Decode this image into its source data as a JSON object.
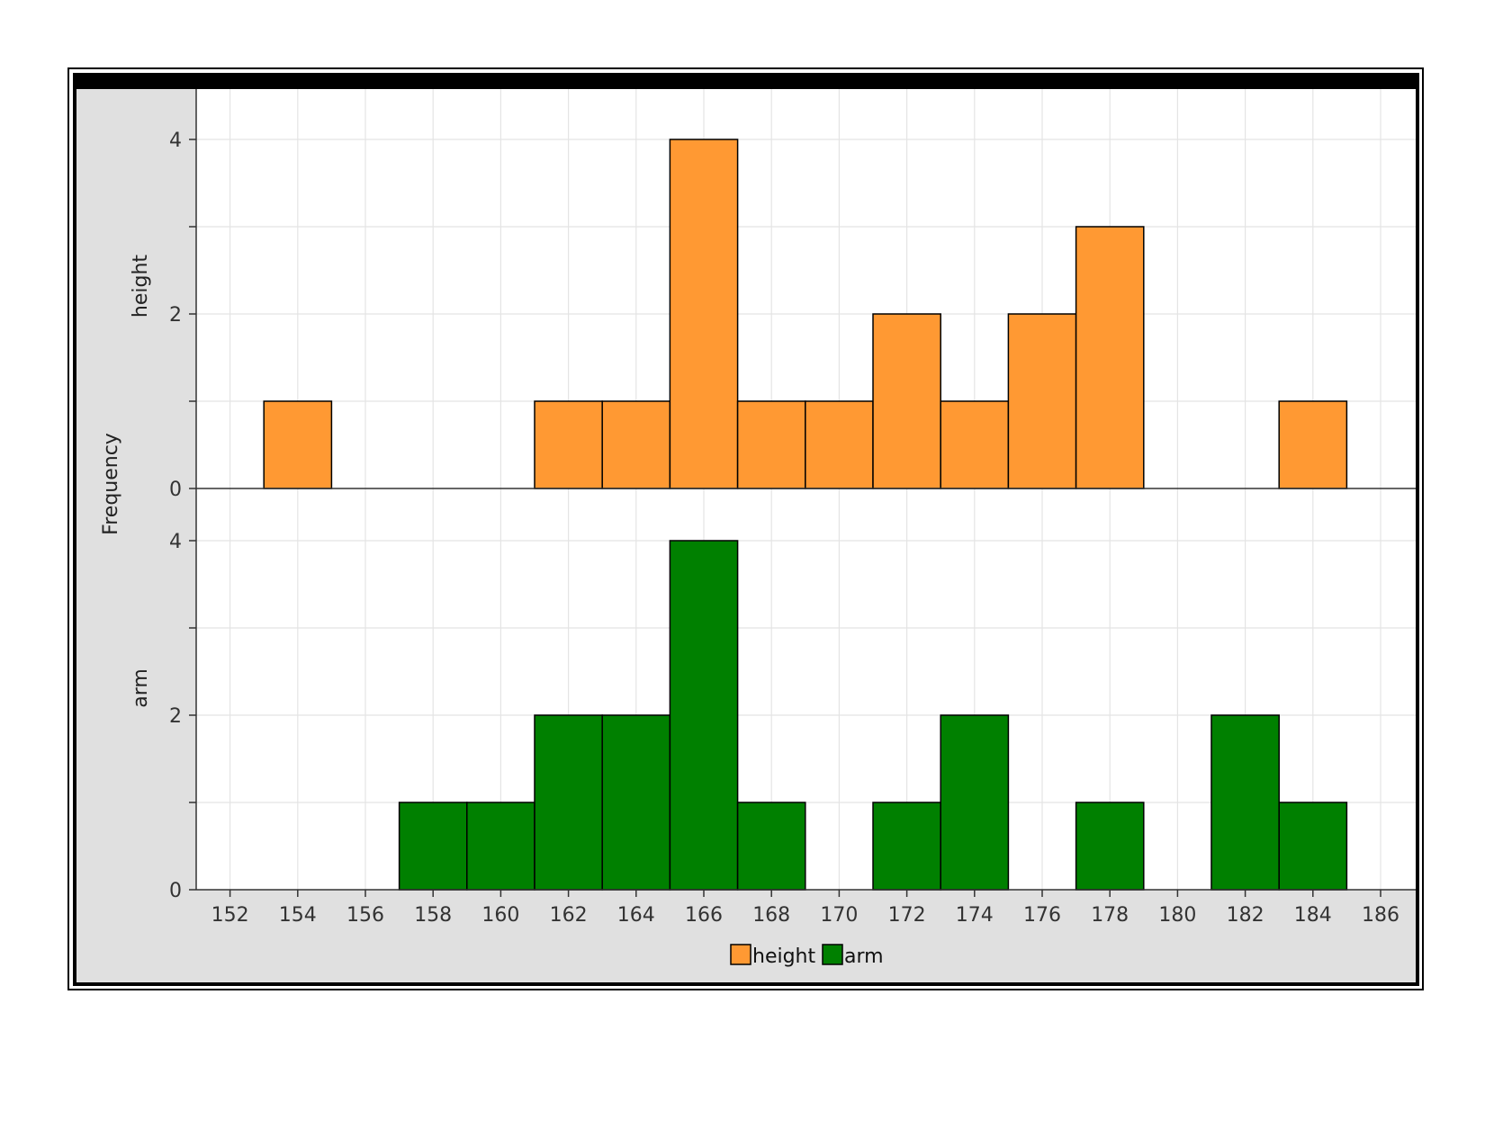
{
  "chart_data": {
    "type": "bar",
    "ylabel": "Frequency",
    "x_ticks": [
      152,
      154,
      156,
      158,
      160,
      162,
      164,
      166,
      168,
      170,
      172,
      174,
      176,
      178,
      180,
      182,
      184,
      186
    ],
    "xlim": [
      151,
      187
    ],
    "ylim": [
      0,
      4.6
    ],
    "y_ticks": [
      0,
      2,
      4
    ],
    "y_minor_ticks": [
      1,
      3
    ],
    "bin_width": 2,
    "grid": true,
    "legend_position": "bottom-center",
    "series": [
      {
        "name": "height",
        "color": "#FF9933",
        "panel_label": "height",
        "bins": [
          {
            "start": 153,
            "end": 155,
            "count": 1
          },
          {
            "start": 161,
            "end": 163,
            "count": 1
          },
          {
            "start": 163,
            "end": 165,
            "count": 1
          },
          {
            "start": 165,
            "end": 167,
            "count": 4
          },
          {
            "start": 167,
            "end": 169,
            "count": 1
          },
          {
            "start": 169,
            "end": 171,
            "count": 1
          },
          {
            "start": 171,
            "end": 173,
            "count": 2
          },
          {
            "start": 173,
            "end": 175,
            "count": 1
          },
          {
            "start": 175,
            "end": 177,
            "count": 2
          },
          {
            "start": 177,
            "end": 179,
            "count": 3
          },
          {
            "start": 183,
            "end": 185,
            "count": 1
          }
        ]
      },
      {
        "name": "arm",
        "color": "#008000",
        "panel_label": "arm",
        "bins": [
          {
            "start": 157,
            "end": 159,
            "count": 1
          },
          {
            "start": 159,
            "end": 161,
            "count": 1
          },
          {
            "start": 161,
            "end": 163,
            "count": 2
          },
          {
            "start": 163,
            "end": 165,
            "count": 2
          },
          {
            "start": 165,
            "end": 167,
            "count": 4
          },
          {
            "start": 167,
            "end": 169,
            "count": 1
          },
          {
            "start": 171,
            "end": 173,
            "count": 1
          },
          {
            "start": 173,
            "end": 175,
            "count": 2
          },
          {
            "start": 177,
            "end": 179,
            "count": 1
          },
          {
            "start": 181,
            "end": 183,
            "count": 2
          },
          {
            "start": 183,
            "end": 185,
            "count": 1
          }
        ]
      }
    ]
  },
  "colors": {
    "frame_bg": "#E0E0E0",
    "plot_bg": "#FFFFFF",
    "grid": "#E4E4E4",
    "bar_stroke": "#000000"
  }
}
